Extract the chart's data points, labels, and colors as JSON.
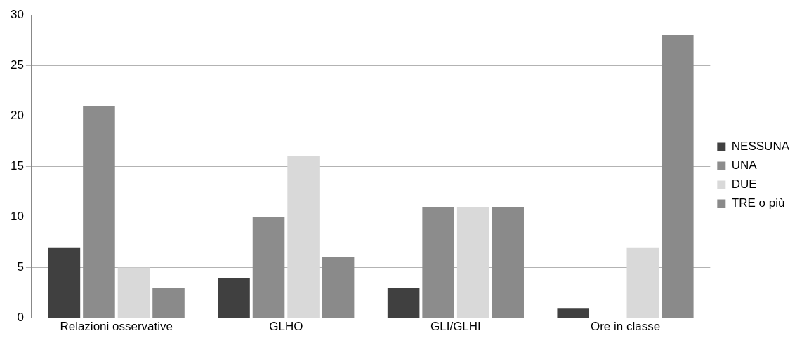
{
  "chart_data": {
    "type": "bar",
    "categories": [
      "Relazioni osservative",
      "GLHO",
      "GLI/GLHI",
      "Ore in classe"
    ],
    "series": [
      {
        "name": "NESSUNA",
        "color": "#404040",
        "values": [
          7,
          4,
          3,
          1
        ]
      },
      {
        "name": "UNA",
        "color": "#8c8c8c",
        "values": [
          21,
          10,
          11,
          0
        ]
      },
      {
        "name": "DUE",
        "color": "#d9d9d9",
        "values": [
          5,
          16,
          11,
          7
        ]
      },
      {
        "name": "TRE o più",
        "color": "#8a8a8a",
        "values": [
          3,
          6,
          11,
          28
        ]
      }
    ],
    "ylim": [
      0,
      30
    ],
    "yticks": [
      0,
      5,
      10,
      15,
      20,
      25,
      30
    ],
    "grid": "y",
    "legend": "right"
  }
}
